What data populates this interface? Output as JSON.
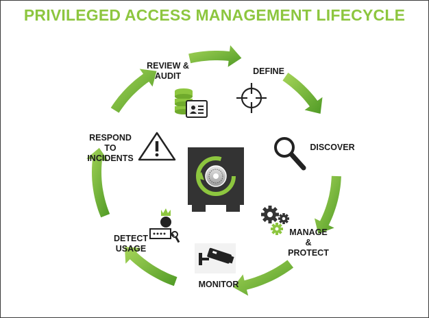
{
  "title": "PRIVILEGED ACCESS MANAGEMENT LIFECYCLE",
  "colors": {
    "accent_green": "#8dc63f",
    "dark_green": "#4e9a22",
    "vault_dark": "#333333",
    "icon_dark": "#222222"
  },
  "stages": {
    "define": "DEFINE",
    "discover": "DISCOVER",
    "manage": "MANAGE\n&\nPROTECT",
    "monitor": "MONITOR",
    "detect": "DETECT\nUSAGE",
    "respond": "RESPOND\nTO\nINCIDENTS",
    "review": "REVIEW &\nAUDIT"
  },
  "icons": {
    "center": "vault-icon",
    "define": "crosshair-icon",
    "discover": "magnifier-icon",
    "manage": "gears-icon",
    "monitor": "cctv-camera-icon",
    "detect": "user-key-icon",
    "respond": "warning-icon",
    "review": "database-id-card-icon"
  }
}
